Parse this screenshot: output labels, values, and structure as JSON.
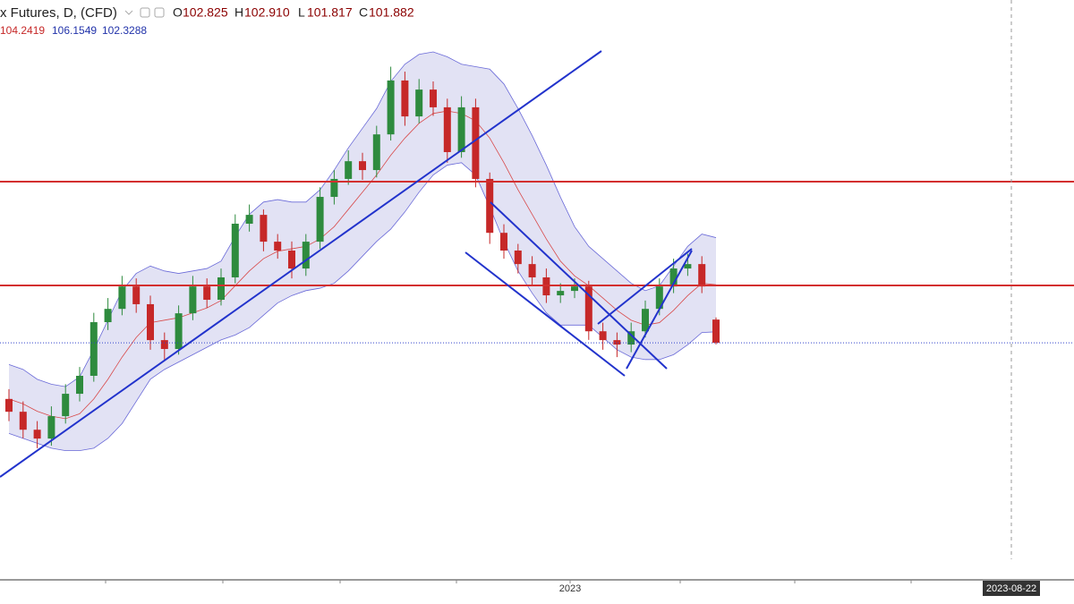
{
  "chart_data": {
    "type": "candlestick",
    "title": "x Futures, D, (CFD)",
    "ohlc_labels": [
      "O",
      "H",
      "L",
      "C"
    ],
    "last_bar_labels": [
      "102.825",
      "102.910",
      "101.817",
      "101.882"
    ],
    "open": [
      99.6,
      99.08,
      98.35,
      97.99,
      98.9,
      99.81,
      100.54,
      102.72,
      103.26,
      104.17,
      103.45,
      101.99,
      101.63,
      103.08,
      104.17,
      103.63,
      104.54,
      106.72,
      107.08,
      105.99,
      105.63,
      104.9,
      105.99,
      107.81,
      108.54,
      109.26,
      108.9,
      110.35,
      112.54,
      111.08,
      112.17,
      111.45,
      109.63,
      111.45,
      108.54,
      106.35,
      105.63,
      105.08,
      104.54,
      103.81,
      103.99,
      104.17,
      102.35,
      101.99,
      101.81,
      102.35,
      103.26,
      104.17,
      104.9,
      105.08,
      102.825
    ],
    "high": [
      100.0,
      99.5,
      98.7,
      99.3,
      100.2,
      100.9,
      103.1,
      103.7,
      104.6,
      104.5,
      103.8,
      102.3,
      103.4,
      104.6,
      104.5,
      104.9,
      107.1,
      107.5,
      107.3,
      106.3,
      106.0,
      106.3,
      108.2,
      108.9,
      109.7,
      109.6,
      110.7,
      113.1,
      112.9,
      112.6,
      112.5,
      111.8,
      111.9,
      111.8,
      108.8,
      106.7,
      105.9,
      105.4,
      104.9,
      104.3,
      104.5,
      104.4,
      102.7,
      102.3,
      102.7,
      103.6,
      104.5,
      105.3,
      105.5,
      105.4,
      102.91
    ],
    "low": [
      98.7,
      98.0,
      97.6,
      97.7,
      98.6,
      99.5,
      100.3,
      102.4,
      103.0,
      103.1,
      101.6,
      101.2,
      101.4,
      102.8,
      103.3,
      103.4,
      104.3,
      106.4,
      105.6,
      105.3,
      104.5,
      104.6,
      105.7,
      107.5,
      108.3,
      108.5,
      108.6,
      110.1,
      110.7,
      110.8,
      111.1,
      109.2,
      109.4,
      108.2,
      105.9,
      105.3,
      104.7,
      104.2,
      103.5,
      103.5,
      103.7,
      102.0,
      101.6,
      101.3,
      101.5,
      102.1,
      103.0,
      103.9,
      104.6,
      103.9,
      101.817
    ],
    "close": [
      99.08,
      98.35,
      97.99,
      98.9,
      99.81,
      100.54,
      102.72,
      103.26,
      104.17,
      103.45,
      101.99,
      101.63,
      103.08,
      104.17,
      103.63,
      104.54,
      106.72,
      107.08,
      105.99,
      105.63,
      104.9,
      105.99,
      107.81,
      108.54,
      109.26,
      108.9,
      110.35,
      112.54,
      111.08,
      112.17,
      111.45,
      109.63,
      111.45,
      108.54,
      106.35,
      105.63,
      105.08,
      104.54,
      103.81,
      103.99,
      104.17,
      102.35,
      101.99,
      101.81,
      102.35,
      103.26,
      104.17,
      104.9,
      105.08,
      104.17,
      101.882
    ],
    "bands": {
      "middle": [
        99.6,
        99.4,
        99.1,
        98.9,
        98.8,
        99.0,
        99.6,
        100.4,
        101.3,
        102.1,
        102.7,
        102.8,
        102.9,
        103.1,
        103.3,
        103.6,
        104.2,
        104.8,
        105.3,
        105.6,
        105.7,
        105.8,
        106.1,
        106.6,
        107.3,
        108.0,
        108.7,
        109.5,
        110.2,
        110.8,
        111.2,
        111.3,
        111.2,
        110.9,
        110.2,
        109.2,
        108.1,
        107.1,
        106.1,
        105.2,
        104.6,
        104.2,
        103.7,
        103.2,
        102.8,
        102.6,
        102.7,
        103.2,
        103.8,
        104.3,
        104.2419
      ],
      "upper": [
        101.0,
        100.8,
        100.4,
        100.2,
        100.1,
        100.5,
        101.6,
        102.8,
        104.0,
        104.7,
        105.0,
        104.8,
        104.7,
        104.8,
        104.9,
        105.2,
        106.2,
        107.1,
        107.6,
        107.7,
        107.6,
        107.6,
        108.1,
        108.9,
        109.8,
        110.6,
        111.4,
        112.5,
        113.2,
        113.6,
        113.7,
        113.5,
        113.2,
        113.1,
        113.0,
        112.4,
        111.4,
        110.3,
        109.1,
        107.8,
        106.6,
        105.8,
        105.3,
        104.8,
        104.3,
        104.0,
        104.2,
        105.0,
        105.8,
        106.3,
        106.1549
      ],
      "lower": [
        98.2,
        98.0,
        97.8,
        97.6,
        97.5,
        97.5,
        97.6,
        98.0,
        98.6,
        99.5,
        100.4,
        100.8,
        101.1,
        101.4,
        101.7,
        102.0,
        102.2,
        102.5,
        103.0,
        103.5,
        103.8,
        104.0,
        104.1,
        104.3,
        104.8,
        105.4,
        106.0,
        106.5,
        107.2,
        108.0,
        108.7,
        109.1,
        109.2,
        108.7,
        107.4,
        106.0,
        104.8,
        103.9,
        103.1,
        102.6,
        102.6,
        102.6,
        102.1,
        101.6,
        101.3,
        101.2,
        101.2,
        101.4,
        101.8,
        102.3,
        102.3288
      ]
    },
    "ylim": [
      92.25,
      115.81
    ],
    "up_color": "#2e8b3e",
    "down_color": "#c62828",
    "band_line_color": "#6a6ad8",
    "band_fill_color": "#d8d8f0",
    "middle_color": "#d84a4a",
    "x_label": "2023",
    "crosshair_label": "2023-08-22"
  }
}
